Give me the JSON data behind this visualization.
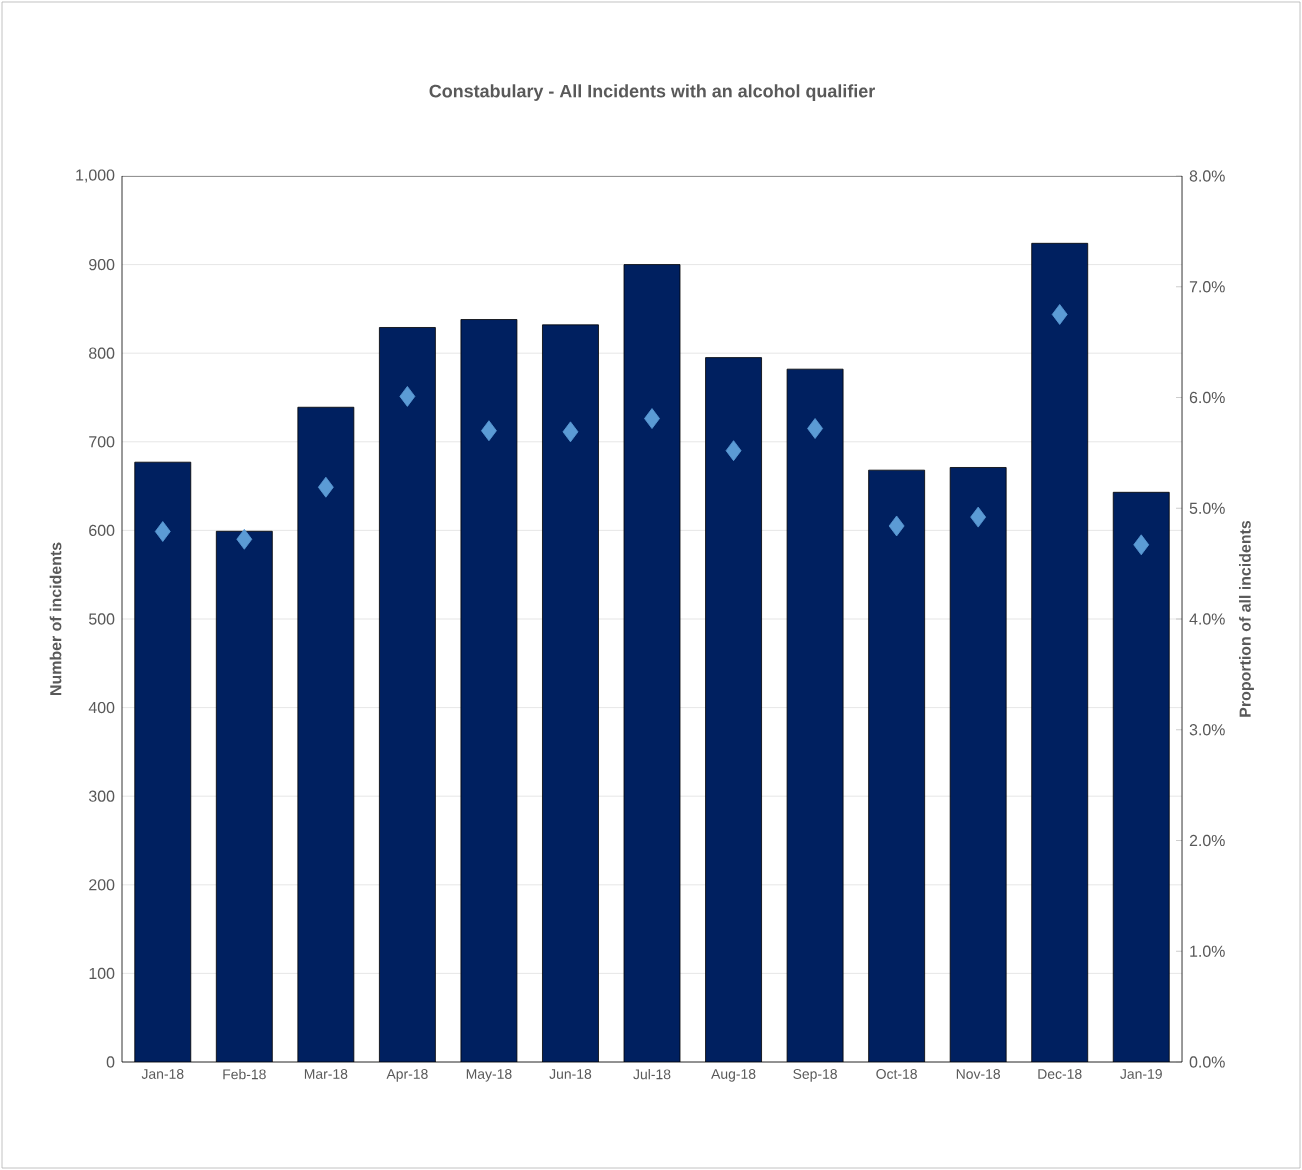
{
  "chart_data": {
    "type": "bar",
    "title": "Constabulary - All Incidents with an alcohol qualifier",
    "ylabel": "Number of incidents",
    "y2label": "Proportion of all incidents",
    "categories": [
      "Jan-18",
      "Feb-18",
      "Mar-18",
      "Apr-18",
      "May-18",
      "Jun-18",
      "Jul-18",
      "Aug-18",
      "Sep-18",
      "Oct-18",
      "Nov-18",
      "Dec-18",
      "Jan-19"
    ],
    "series": [
      {
        "color": "#002060",
        "values": [
          677,
          599,
          739,
          829,
          838,
          832,
          900,
          795,
          782,
          668,
          671,
          924,
          643
        ]
      },
      {
        "type": "scatter",
        "axis": "y2",
        "marker": "diamond",
        "color": "#5b9bd5",
        "values": [
          4.79,
          4.72,
          5.19,
          6.01,
          5.7,
          5.69,
          5.81,
          5.52,
          5.72,
          4.84,
          4.92,
          6.75,
          4.67
        ]
      }
    ],
    "ylim": [
      0,
      1000
    ],
    "yticks": [
      0,
      100,
      200,
      300,
      400,
      500,
      600,
      700,
      800,
      900,
      {
        "value": 1000,
        "label": "1,000"
      }
    ],
    "y2lim": [
      0,
      8
    ],
    "y2ticks": [
      {
        "value": 0,
        "label": "0.0%"
      },
      {
        "value": 1,
        "label": "1.0%"
      },
      {
        "value": 2,
        "label": "2.0%"
      },
      {
        "value": 3,
        "label": "3.0%"
      },
      {
        "value": 4,
        "label": "4.0%"
      },
      {
        "value": 5,
        "label": "5.0%"
      },
      {
        "value": 6,
        "label": "6.0%"
      },
      {
        "value": 7,
        "label": "7.0%"
      },
      {
        "value": 8,
        "label": "8.0%"
      }
    ],
    "grid": "y",
    "legend": false
  }
}
